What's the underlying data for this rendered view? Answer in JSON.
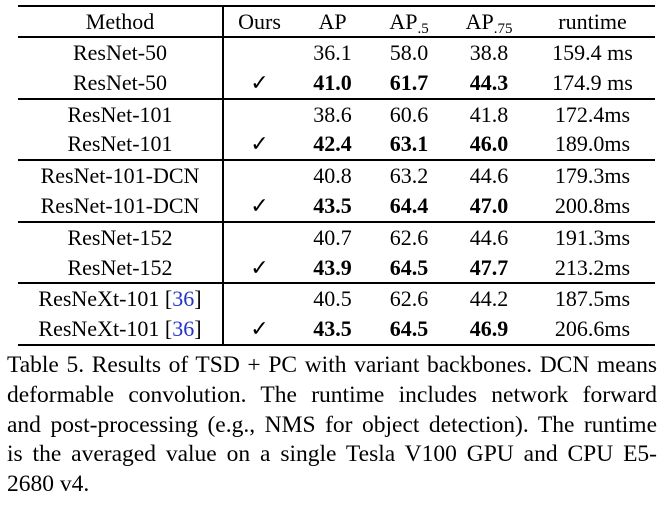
{
  "colors": {
    "text": "#000000",
    "background": "#ffffff",
    "citation_blue": "#2233cc"
  },
  "table": {
    "headers": [
      {
        "label": "Method"
      },
      {
        "label": "Ours"
      },
      {
        "label": "AP"
      },
      {
        "label": "AP",
        "sub": ".5"
      },
      {
        "label": "AP",
        "sub": ".75"
      },
      {
        "label": "runtime"
      }
    ],
    "rows": [
      {
        "method": "ResNet-50",
        "ours": "",
        "ap": "36.1",
        "ap50": "58.0",
        "ap75": "38.8",
        "runtime": "159.4 ms"
      },
      {
        "method": "ResNet-50",
        "ours": "✓",
        "ap": "41.0",
        "ap50": "61.7",
        "ap75": "44.3",
        "runtime": "174.9 ms"
      },
      {
        "method": "ResNet-101",
        "ours": "",
        "ap": "38.6",
        "ap50": "60.6",
        "ap75": "41.8",
        "runtime": "172.4ms"
      },
      {
        "method": "ResNet-101",
        "ours": "✓",
        "ap": "42.4",
        "ap50": "63.1",
        "ap75": "46.0",
        "runtime": "189.0ms"
      },
      {
        "method": "ResNet-101-DCN",
        "ours": "",
        "ap": "40.8",
        "ap50": "63.2",
        "ap75": "44.6",
        "runtime": "179.3ms"
      },
      {
        "method": "ResNet-101-DCN",
        "ours": "✓",
        "ap": "43.5",
        "ap50": "64.4",
        "ap75": "47.0",
        "runtime": "200.8ms"
      },
      {
        "method": "ResNet-152",
        "ours": "",
        "ap": "40.7",
        "ap50": "62.6",
        "ap75": "44.6",
        "runtime": "191.3ms"
      },
      {
        "method": "ResNet-152",
        "ours": "✓",
        "ap": "43.9",
        "ap50": "64.5",
        "ap75": "47.7",
        "runtime": "213.2ms"
      },
      {
        "method": "ResNeXt-101 ",
        "cite_open": "[",
        "cite": "36",
        "cite_close": "]",
        "ours": "",
        "ap": "40.5",
        "ap50": "62.6",
        "ap75": "44.2",
        "runtime": "187.5ms"
      },
      {
        "method": "ResNeXt-101 ",
        "cite_open": "[",
        "cite": "36",
        "cite_close": "]",
        "ours": "✓",
        "ap": "43.5",
        "ap50": "64.5",
        "ap75": "46.9",
        "runtime": "206.6ms"
      }
    ]
  },
  "caption": {
    "lines": [
      "Table 5. Results of TSD + PC with variant backbones. DCN means",
      "deformable convolution.  The runtime includes network forward",
      "and post-processing (e.g., NMS for object detection). The runtime",
      "is the averaged value on a single Tesla V100 GPU and CPU E5-",
      "2680 v4."
    ]
  }
}
